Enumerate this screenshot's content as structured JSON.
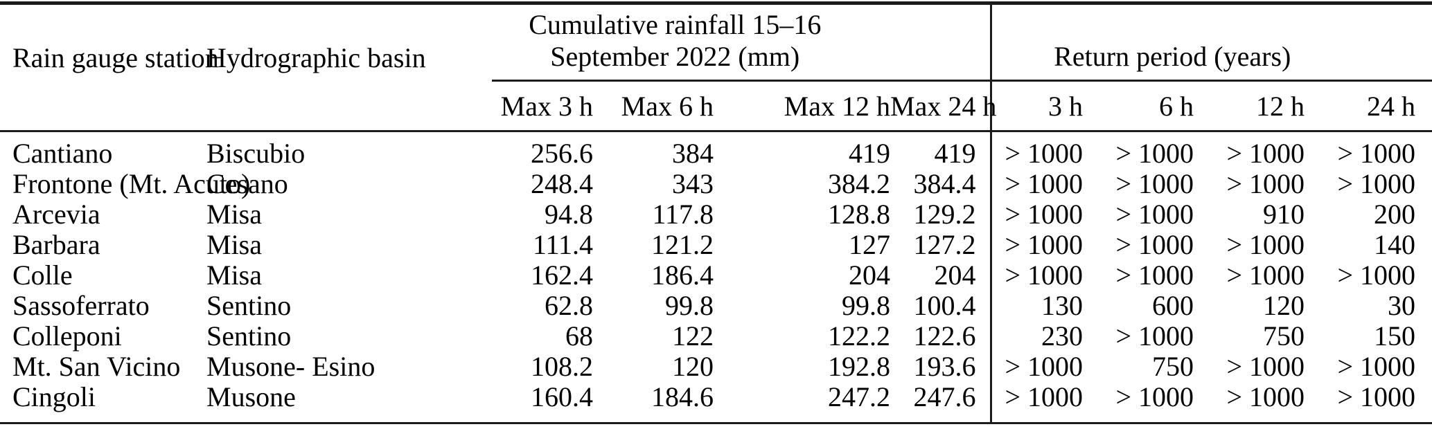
{
  "table": {
    "col_groups": {
      "rainfall": {
        "title_line1": "Cumulative rainfall 15–16",
        "title_line2": "September 2022 (mm)"
      },
      "return_period": {
        "title": "Return period (years)"
      }
    },
    "columns": {
      "station": "Rain gauge station",
      "basin": "Hydrographic basin",
      "rainfall_sub": [
        "Max 3 h",
        "Max 6 h",
        "Max 12 h",
        "Max 24 h"
      ],
      "return_sub": [
        "3 h",
        "6 h",
        "12 h",
        "24 h"
      ]
    },
    "rows": [
      {
        "station": "Cantiano",
        "basin": "Biscubio",
        "rainfall": [
          "256.6",
          "384",
          "419",
          "419"
        ],
        "return_period": [
          "> 1000",
          "> 1000",
          "> 1000",
          "> 1000"
        ]
      },
      {
        "station": "Frontone (Mt. Acuto)",
        "basin": "Cesano",
        "rainfall": [
          "248.4",
          "343",
          "384.2",
          "384.4"
        ],
        "return_period": [
          "> 1000",
          "> 1000",
          "> 1000",
          "> 1000"
        ]
      },
      {
        "station": "Arcevia",
        "basin": "Misa",
        "rainfall": [
          "94.8",
          "117.8",
          "128.8",
          "129.2"
        ],
        "return_period": [
          "> 1000",
          "> 1000",
          "910",
          "200"
        ]
      },
      {
        "station": "Barbara",
        "basin": "Misa",
        "rainfall": [
          "111.4",
          "121.2",
          "127",
          "127.2"
        ],
        "return_period": [
          "> 1000",
          "> 1000",
          "> 1000",
          "140"
        ]
      },
      {
        "station": "Colle",
        "basin": "Misa",
        "rainfall": [
          "162.4",
          "186.4",
          "204",
          "204"
        ],
        "return_period": [
          "> 1000",
          "> 1000",
          "> 1000",
          "> 1000"
        ]
      },
      {
        "station": "Sassoferrato",
        "basin": "Sentino",
        "rainfall": [
          "62.8",
          "99.8",
          "99.8",
          "100.4"
        ],
        "return_period": [
          "130",
          "600",
          "120",
          "30"
        ]
      },
      {
        "station": "Colleponi",
        "basin": "Sentino",
        "rainfall": [
          "68",
          "122",
          "122.2",
          "122.6"
        ],
        "return_period": [
          "230",
          "> 1000",
          "750",
          "150"
        ]
      },
      {
        "station": "Mt. San Vicino",
        "basin": "Musone- Esino",
        "rainfall": [
          "108.2",
          "120",
          "192.8",
          "193.6"
        ],
        "return_period": [
          "> 1000",
          "750",
          "> 1000",
          "> 1000"
        ]
      },
      {
        "station": "Cingoli",
        "basin": "Musone",
        "rainfall": [
          "160.4",
          "184.6",
          "247.2",
          "247.6"
        ],
        "return_period": [
          "> 1000",
          "> 1000",
          "> 1000",
          "> 1000"
        ]
      }
    ]
  },
  "rule_color": "#1b1b1b"
}
